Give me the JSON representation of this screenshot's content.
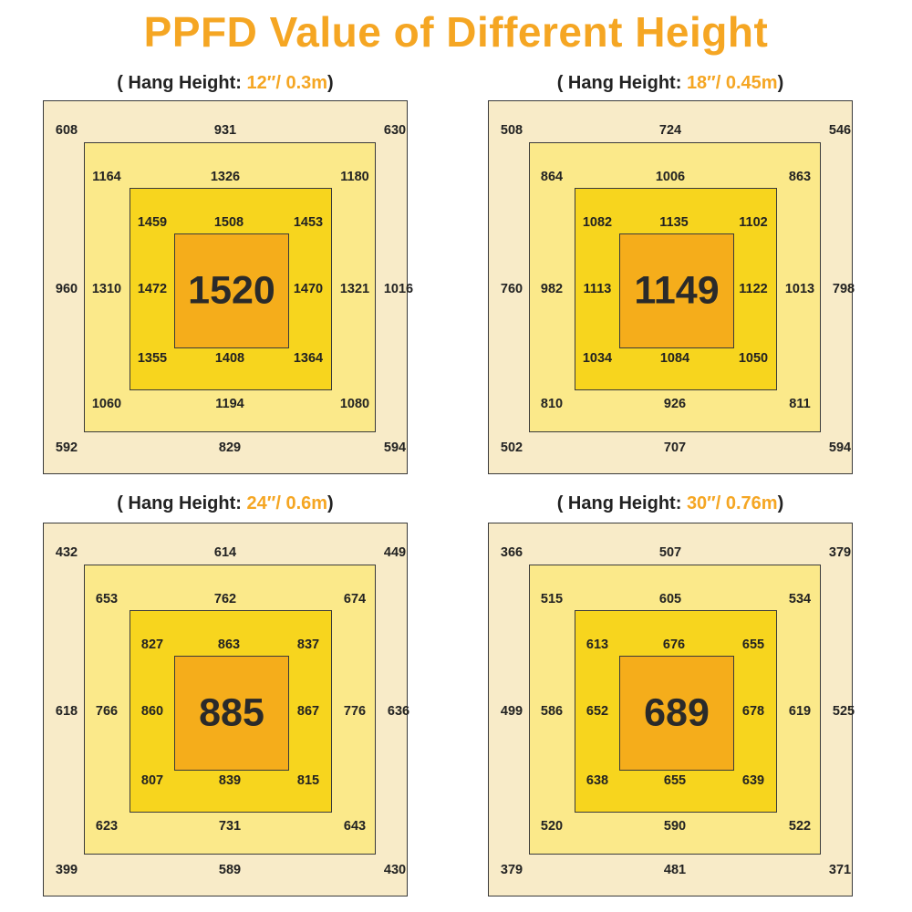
{
  "title": "PPFD Value of Different Height",
  "colors": {
    "title": "#f5a623",
    "highlight": "#f5a623",
    "ring_outer": "#f8ebc8",
    "ring_2": "#fbe98a",
    "ring_3": "#f7d51e",
    "center": "#f5ad1b",
    "border": "#3a3a3a",
    "text": "#222222"
  },
  "chart_data": [
    {
      "type": "heatmap",
      "title_prefix": "( Hang Height: ",
      "title_value": "12″/ 0.3m",
      "title_suffix": ")",
      "center": "1520",
      "rings": [
        [
          "608",
          "931",
          "630",
          "960",
          "1016",
          "592",
          "829",
          "594"
        ],
        [
          "1164",
          "1326",
          "1180",
          "1310",
          "1321",
          "1060",
          "1194",
          "1080"
        ],
        [
          "1459",
          "1508",
          "1453",
          "1472",
          "1470",
          "1355",
          "1408",
          "1364"
        ]
      ]
    },
    {
      "type": "heatmap",
      "title_prefix": "( Hang Height: ",
      "title_value": "18″/ 0.45m",
      "title_suffix": ")",
      "center": "1149",
      "rings": [
        [
          "508",
          "724",
          "546",
          "760",
          "798",
          "502",
          "707",
          "594"
        ],
        [
          "864",
          "1006",
          "863",
          "982",
          "1013",
          "810",
          "926",
          "811"
        ],
        [
          "1082",
          "1135",
          "1102",
          "1113",
          "1122",
          "1034",
          "1084",
          "1050"
        ]
      ]
    },
    {
      "type": "heatmap",
      "title_prefix": "( Hang Height: ",
      "title_value": "24″/ 0.6m",
      "title_suffix": ")",
      "center": "885",
      "rings": [
        [
          "432",
          "614",
          "449",
          "618",
          "636",
          "399",
          "589",
          "430"
        ],
        [
          "653",
          "762",
          "674",
          "766",
          "776",
          "623",
          "731",
          "643"
        ],
        [
          "827",
          "863",
          "837",
          "860",
          "867",
          "807",
          "839",
          "815"
        ]
      ]
    },
    {
      "type": "heatmap",
      "title_prefix": "( Hang Height: ",
      "title_value": "30″/ 0.76m",
      "title_suffix": ")",
      "center": "689",
      "rings": [
        [
          "366",
          "507",
          "379",
          "499",
          "525",
          "379",
          "481",
          "371"
        ],
        [
          "515",
          "605",
          "534",
          "586",
          "619",
          "520",
          "590",
          "522"
        ],
        [
          "613",
          "676",
          "655",
          "652",
          "678",
          "638",
          "655",
          "639"
        ]
      ]
    }
  ]
}
